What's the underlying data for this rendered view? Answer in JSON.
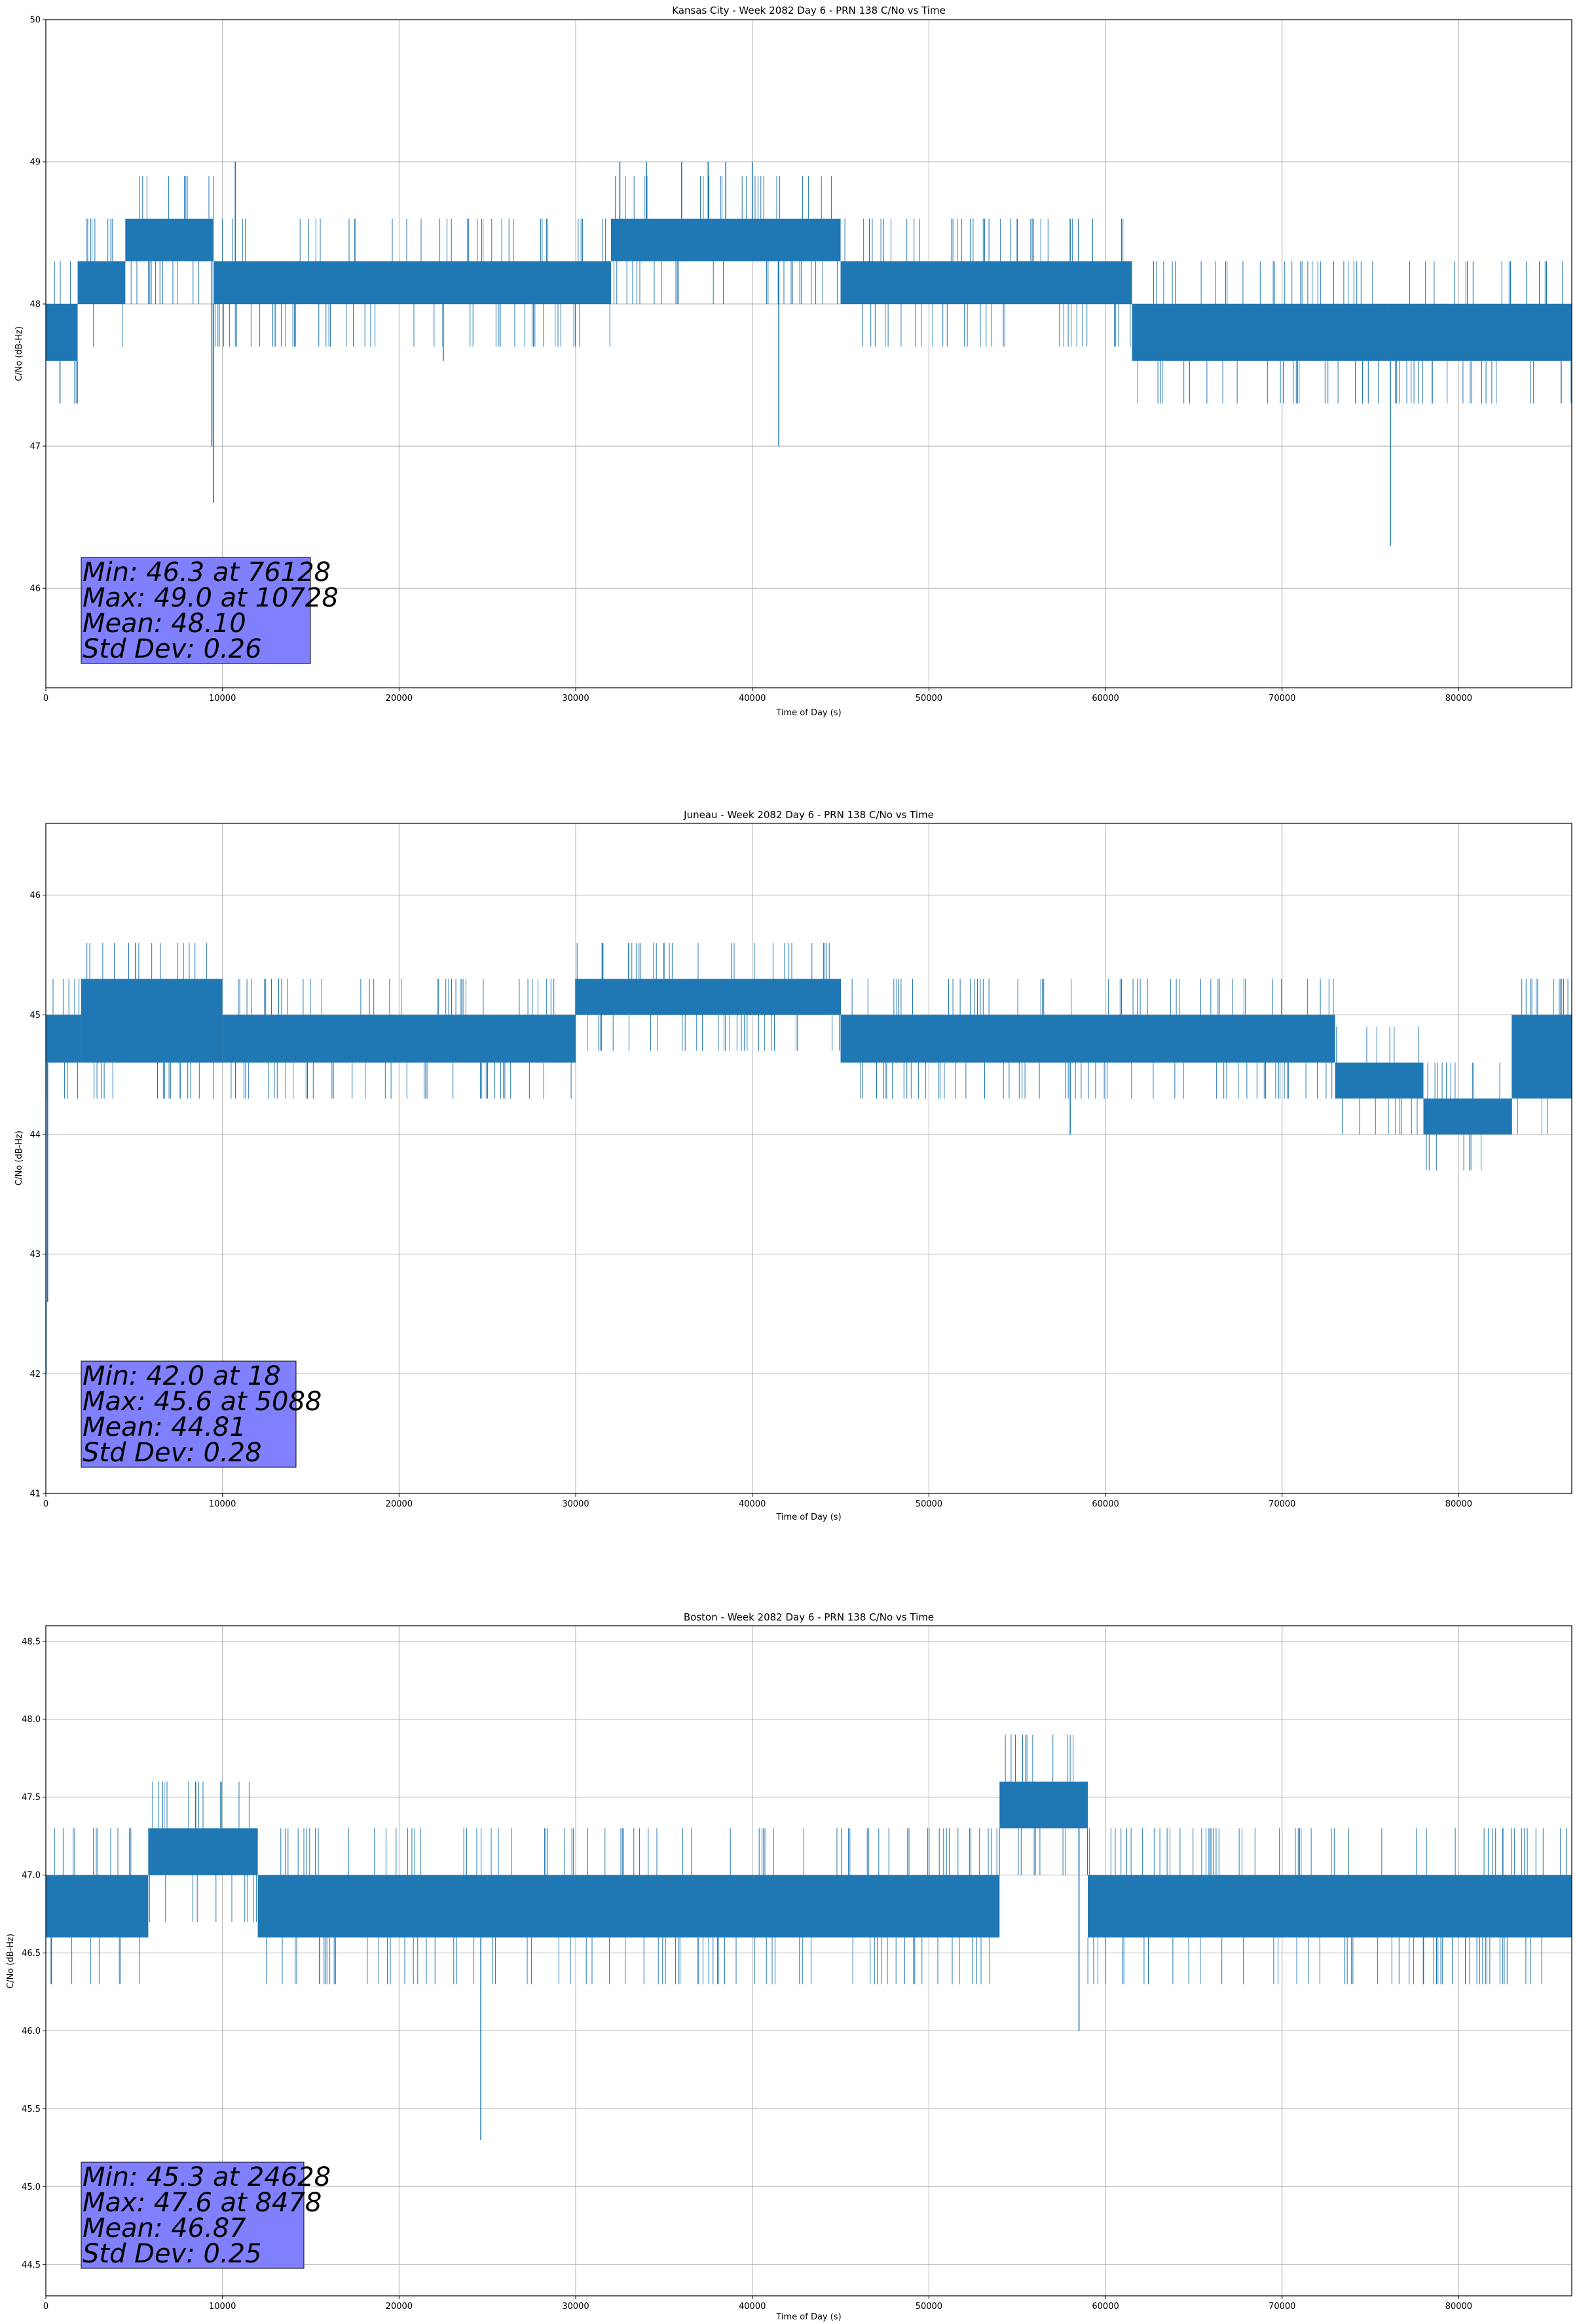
{
  "figure": {
    "background": "#ffffff",
    "series_color": "#1f77b4",
    "stats_box_color": "#8080ff"
  },
  "chart_data": [
    {
      "type": "line",
      "title": "Kansas City - Week 2082 Day 6 - PRN 138 C/No vs Time",
      "xlabel": "Time of Day (s)",
      "ylabel": "C/No (dB-Hz)",
      "xlim": [
        0,
        86400
      ],
      "ylim": [
        45.3,
        50.0
      ],
      "xticks": [
        0,
        10000,
        20000,
        30000,
        40000,
        50000,
        60000,
        70000,
        80000
      ],
      "xtick_labels": [
        "0",
        "10000",
        "20000",
        "30000",
        "40000",
        "50000",
        "60000",
        "70000",
        "80000"
      ],
      "yticks": [
        46,
        47,
        48,
        49,
        50
      ],
      "ytick_labels": [
        "46",
        "47",
        "48",
        "49",
        "50"
      ],
      "grid": true,
      "series": [
        {
          "name": "C/No",
          "bands": [
            {
              "x": [
                0,
                1800
              ],
              "y": [
                47.6,
                48.0
              ]
            },
            {
              "x": [
                1800,
                4500
              ],
              "y": [
                48.0,
                48.3
              ]
            },
            {
              "x": [
                4500,
                9500
              ],
              "y": [
                48.3,
                48.6
              ]
            },
            {
              "x": [
                9500,
                32000
              ],
              "y": [
                48.0,
                48.3
              ]
            },
            {
              "x": [
                32000,
                45000
              ],
              "y": [
                48.3,
                48.6
              ]
            },
            {
              "x": [
                45000,
                61500
              ],
              "y": [
                48.0,
                48.3
              ]
            },
            {
              "x": [
                61500,
                76000
              ],
              "y": [
                47.6,
                48.0
              ]
            },
            {
              "x": [
                76000,
                86400
              ],
              "y": [
                47.6,
                48.0
              ]
            }
          ],
          "spikes": [
            {
              "x": 800,
              "y": 47.3
            },
            {
              "x": 9400,
              "y": 47.0
            },
            {
              "x": 9500,
              "y": 46.6
            },
            {
              "x": 10728,
              "y": 49.0
            },
            {
              "x": 17500,
              "y": 48.6
            },
            {
              "x": 22500,
              "y": 47.6
            },
            {
              "x": 32500,
              "y": 49.0
            },
            {
              "x": 34000,
              "y": 49.0
            },
            {
              "x": 36000,
              "y": 49.0
            },
            {
              "x": 37500,
              "y": 49.0
            },
            {
              "x": 38500,
              "y": 49.0
            },
            {
              "x": 40000,
              "y": 49.0
            },
            {
              "x": 41500,
              "y": 47.0
            },
            {
              "x": 55000,
              "y": 48.6
            },
            {
              "x": 58000,
              "y": 48.6
            },
            {
              "x": 76128,
              "y": 46.3
            },
            {
              "x": 78500,
              "y": 47.3
            },
            {
              "x": 85800,
              "y": 47.3
            }
          ]
        }
      ],
      "stats": [
        "Min: 46.3 at 76128",
        "Max: 49.0 at 10728",
        "Mean: 48.10",
        "Std Dev: 0.26"
      ]
    },
    {
      "type": "line",
      "title": "Juneau - Week 2082 Day 6 - PRN 138 C/No vs Time",
      "xlabel": "Time of Day (s)",
      "ylabel": "C/No (dB-Hz)",
      "xlim": [
        0,
        86400
      ],
      "ylim": [
        41.0,
        46.6
      ],
      "xticks": [
        0,
        10000,
        20000,
        30000,
        40000,
        50000,
        60000,
        70000,
        80000
      ],
      "xtick_labels": [
        "0",
        "10000",
        "20000",
        "30000",
        "40000",
        "50000",
        "60000",
        "70000",
        "80000"
      ],
      "yticks": [
        41,
        42,
        43,
        44,
        45,
        46
      ],
      "ytick_labels": [
        "41",
        "42",
        "43",
        "44",
        "45",
        "46"
      ],
      "grid": true,
      "series": [
        {
          "name": "C/No",
          "bands": [
            {
              "x": [
                0,
                2000
              ],
              "y": [
                44.6,
                45.0
              ]
            },
            {
              "x": [
                2000,
                10000
              ],
              "y": [
                44.6,
                45.3
              ]
            },
            {
              "x": [
                10000,
                30000
              ],
              "y": [
                44.6,
                45.0
              ]
            },
            {
              "x": [
                30000,
                45000
              ],
              "y": [
                45.0,
                45.3
              ]
            },
            {
              "x": [
                45000,
                73000
              ],
              "y": [
                44.6,
                45.0
              ]
            },
            {
              "x": [
                73000,
                78000
              ],
              "y": [
                44.3,
                44.6
              ]
            },
            {
              "x": [
                78000,
                83000
              ],
              "y": [
                44.0,
                44.3
              ]
            },
            {
              "x": [
                83000,
                86400
              ],
              "y": [
                44.3,
                45.0
              ]
            }
          ],
          "spikes": [
            {
              "x": 18,
              "y": 42.0
            },
            {
              "x": 100,
              "y": 42.6
            },
            {
              "x": 5088,
              "y": 45.6
            },
            {
              "x": 31500,
              "y": 45.6
            },
            {
              "x": 33000,
              "y": 45.6
            },
            {
              "x": 35000,
              "y": 45.6
            },
            {
              "x": 58000,
              "y": 44.0
            },
            {
              "x": 85800,
              "y": 45.3
            }
          ]
        }
      ],
      "stats": [
        "Min: 42.0 at 18",
        "Max: 45.6 at 5088",
        "Mean: 44.81",
        "Std Dev: 0.28"
      ]
    },
    {
      "type": "line",
      "title": "Boston - Week 2082 Day 6 - PRN 138 C/No vs Time",
      "xlabel": "Time of Day (s)",
      "ylabel": "C/No (dB-Hz)",
      "xlim": [
        0,
        86400
      ],
      "ylim": [
        44.3,
        48.6
      ],
      "xticks": [
        0,
        10000,
        20000,
        30000,
        40000,
        50000,
        60000,
        70000,
        80000
      ],
      "xtick_labels": [
        "0",
        "10000",
        "20000",
        "30000",
        "40000",
        "50000",
        "60000",
        "70000",
        "80000"
      ],
      "yticks": [
        44.5,
        45.0,
        45.5,
        46.0,
        46.5,
        47.0,
        47.5,
        48.0,
        48.5
      ],
      "ytick_labels": [
        "44.5",
        "45.0",
        "45.5",
        "46.0",
        "46.5",
        "47.0",
        "47.5",
        "48.0",
        "48.5"
      ],
      "grid": true,
      "series": [
        {
          "name": "C/No",
          "bands": [
            {
              "x": [
                0,
                5800
              ],
              "y": [
                46.6,
                47.0
              ]
            },
            {
              "x": [
                5800,
                12000
              ],
              "y": [
                47.0,
                47.3
              ]
            },
            {
              "x": [
                12000,
                54000
              ],
              "y": [
                46.6,
                47.0
              ]
            },
            {
              "x": [
                54000,
                59000
              ],
              "y": [
                47.3,
                47.6
              ]
            },
            {
              "x": [
                59000,
                86400
              ],
              "y": [
                46.6,
                47.0
              ]
            }
          ],
          "spikes": [
            {
              "x": 300,
              "y": 46.3
            },
            {
              "x": 8478,
              "y": 47.6
            },
            {
              "x": 15500,
              "y": 46.3
            },
            {
              "x": 24628,
              "y": 45.3
            },
            {
              "x": 58500,
              "y": 46.0
            },
            {
              "x": 78000,
              "y": 46.3
            },
            {
              "x": 82500,
              "y": 47.3
            }
          ]
        }
      ],
      "stats": [
        "Min: 45.3 at 24628",
        "Max: 47.6 at 8478",
        "Mean: 46.87",
        "Std Dev: 0.25"
      ]
    }
  ]
}
